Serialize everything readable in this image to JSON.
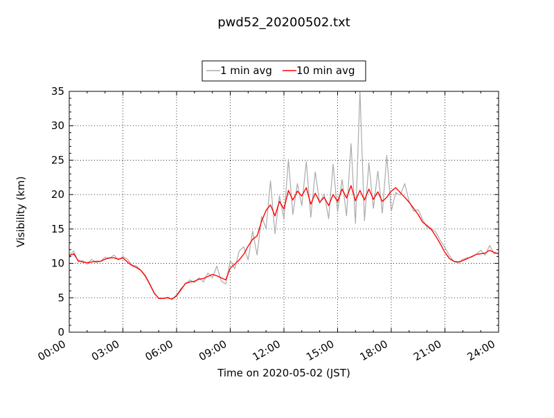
{
  "chart_data": {
    "type": "line",
    "title": "pwd52_20200502.txt",
    "xlabel": "Time on 2020-05-02 (JST)",
    "ylabel": "Visibility (km)",
    "x_unit": "hour",
    "xlim": [
      0,
      24
    ],
    "ylim": [
      0,
      35
    ],
    "xticks": [
      0,
      3,
      6,
      9,
      12,
      15,
      18,
      21,
      24
    ],
    "xtick_labels": [
      "00:00",
      "03:00",
      "06:00",
      "09:00",
      "12:00",
      "15:00",
      "18:00",
      "21:00",
      "24:00"
    ],
    "yticks": [
      0,
      5,
      10,
      15,
      20,
      25,
      30,
      35
    ],
    "ytick_labels": [
      "0",
      "5",
      "10",
      "15",
      "20",
      "25",
      "30",
      "35"
    ],
    "grid": true,
    "legend_position": "top-center",
    "series": [
      {
        "name": "1 min avg",
        "color": "#aaaaaa",
        "x": [
          0,
          0.25,
          0.5,
          0.75,
          1,
          1.25,
          1.5,
          1.75,
          2,
          2.25,
          2.5,
          2.75,
          3,
          3.25,
          3.5,
          3.75,
          4,
          4.25,
          4.5,
          4.75,
          5,
          5.25,
          5.5,
          5.75,
          6,
          6.25,
          6.5,
          6.75,
          7,
          7.25,
          7.5,
          7.75,
          8,
          8.25,
          8.5,
          8.75,
          9,
          9.25,
          9.5,
          9.75,
          10,
          10.25,
          10.5,
          10.75,
          11,
          11.25,
          11.5,
          11.75,
          12,
          12.25,
          12.5,
          12.75,
          13,
          13.25,
          13.5,
          13.75,
          14,
          14.25,
          14.5,
          14.75,
          15,
          15.25,
          15.5,
          15.75,
          16,
          16.25,
          16.5,
          16.75,
          17,
          17.25,
          17.5,
          17.75,
          18,
          18.25,
          18.5,
          18.75,
          19,
          19.25,
          19.5,
          19.75,
          20,
          20.25,
          20.5,
          20.75,
          21,
          21.25,
          21.5,
          21.75,
          22,
          22.25,
          22.5,
          22.75,
          23,
          23.25,
          23.5,
          23.75,
          24
        ],
        "y": [
          11.2,
          11.8,
          10.2,
          10.4,
          9.9,
          10.6,
          10.1,
          10.3,
          10.9,
          10.7,
          11.2,
          10.5,
          11.0,
          10.6,
          9.8,
          9.6,
          9.0,
          8.1,
          6.9,
          5.6,
          5.0,
          4.9,
          5.1,
          4.8,
          5.4,
          6.4,
          7.0,
          7.6,
          7.2,
          7.9,
          7.3,
          8.6,
          7.9,
          9.6,
          7.4,
          7.0,
          10.4,
          9.2,
          11.8,
          12.4,
          10.5,
          14.7,
          11.2,
          16.8,
          15.1,
          22.0,
          14.3,
          19.8,
          16.5,
          25.1,
          17.1,
          21.6,
          18.4,
          24.8,
          16.7,
          23.3,
          18.7,
          20.1,
          16.5,
          24.4,
          17.5,
          22.2,
          16.9,
          27.4,
          15.8,
          35.2,
          16.2,
          24.6,
          18.0,
          23.4,
          17.3,
          25.7,
          17.6,
          20.3,
          19.9,
          21.6,
          19.0,
          17.6,
          17.8,
          16.4,
          15.2,
          15.1,
          14.5,
          13.3,
          12.3,
          11.1,
          10.3,
          10.0,
          10.6,
          10.8,
          10.9,
          11.3,
          11.9,
          11.2,
          12.6,
          11.4,
          11.5
        ]
      },
      {
        "name": "10 min avg",
        "color": "#ff0000",
        "x": [
          0,
          0.25,
          0.5,
          0.75,
          1,
          1.25,
          1.5,
          1.75,
          2,
          2.25,
          2.5,
          2.75,
          3,
          3.25,
          3.5,
          3.75,
          4,
          4.25,
          4.5,
          4.75,
          5,
          5.25,
          5.5,
          5.75,
          6,
          6.25,
          6.5,
          6.75,
          7,
          7.25,
          7.5,
          7.75,
          8,
          8.25,
          8.5,
          8.75,
          9,
          9.25,
          9.5,
          9.75,
          10,
          10.25,
          10.5,
          10.75,
          11,
          11.25,
          11.5,
          11.75,
          12,
          12.25,
          12.5,
          12.75,
          13,
          13.25,
          13.5,
          13.75,
          14,
          14.25,
          14.5,
          14.75,
          15,
          15.25,
          15.5,
          15.75,
          16,
          16.25,
          16.5,
          16.75,
          17,
          17.25,
          17.5,
          17.75,
          18,
          18.25,
          18.5,
          18.75,
          19,
          19.25,
          19.5,
          19.75,
          20,
          20.25,
          20.5,
          20.75,
          21,
          21.25,
          21.5,
          21.75,
          22,
          22.25,
          22.5,
          22.75,
          23,
          23.25,
          23.5,
          23.75,
          24
        ],
        "y": [
          11.1,
          11.4,
          10.4,
          10.2,
          10.1,
          10.2,
          10.3,
          10.3,
          10.6,
          10.8,
          10.8,
          10.6,
          10.8,
          10.2,
          9.7,
          9.4,
          9.0,
          8.2,
          7.0,
          5.7,
          4.9,
          4.9,
          5.0,
          4.8,
          5.3,
          6.2,
          7.1,
          7.3,
          7.4,
          7.7,
          7.8,
          8.1,
          8.4,
          8.2,
          7.9,
          7.6,
          9.3,
          9.9,
          10.5,
          11.3,
          12.5,
          13.5,
          14.0,
          16.1,
          17.7,
          18.5,
          16.9,
          19.0,
          17.9,
          20.6,
          19.2,
          20.5,
          19.8,
          21.0,
          18.6,
          20.2,
          18.9,
          19.6,
          18.4,
          20.0,
          19.0,
          20.8,
          19.5,
          21.3,
          19.1,
          20.6,
          19.2,
          20.8,
          19.3,
          20.4,
          19.0,
          19.6,
          20.5,
          21.0,
          20.3,
          19.6,
          18.9,
          18.0,
          17.1,
          16.0,
          15.5,
          14.9,
          13.9,
          12.8,
          11.6,
          10.7,
          10.3,
          10.2,
          10.4,
          10.7,
          11.0,
          11.3,
          11.4,
          11.5,
          11.9,
          11.6,
          11.4
        ]
      }
    ]
  }
}
